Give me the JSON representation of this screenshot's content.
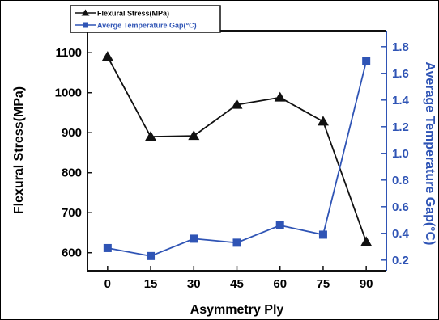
{
  "chart_data": {
    "type": "line",
    "xlabel": "Asymmetry Ply",
    "ylabel": "Flexural Stress(MPa)",
    "y2label": "Average Temperature Gap(°C)",
    "x": [
      0,
      15,
      30,
      45,
      60,
      75,
      90
    ],
    "x_ticks": [
      "0",
      "15",
      "30",
      "45",
      "60",
      "75",
      "90"
    ],
    "y_ticks": [
      "600",
      "700",
      "800",
      "900",
      "1000",
      "1100"
    ],
    "y2_ticks": [
      "0.2",
      "0.4",
      "0.6",
      "0.8",
      "1.0",
      "1.2",
      "1.4",
      "1.6",
      "1.8"
    ],
    "xlim": [
      -7,
      97
    ],
    "ylim": [
      555,
      1155
    ],
    "y2lim": [
      0.12,
      1.92
    ],
    "series": [
      {
        "name": "Flexural Stress(MPa)",
        "axis": "left",
        "values": [
          1090,
          890,
          892,
          970,
          988,
          928,
          627
        ],
        "color": "#111111",
        "marker": "triangle"
      },
      {
        "name": "Averge Temperature Gap(°C)",
        "axis": "right",
        "values": [
          0.29,
          0.23,
          0.36,
          0.33,
          0.46,
          0.39,
          1.69
        ],
        "color": "#2f54b5",
        "marker": "square"
      }
    ],
    "legend_position": "top-left",
    "grid": false,
    "colors": {
      "right_axis": "#2f54b5",
      "left_axis": "#111111"
    }
  }
}
